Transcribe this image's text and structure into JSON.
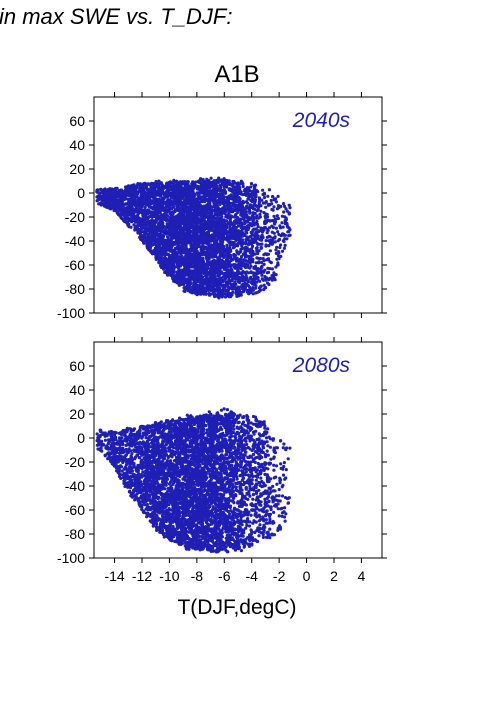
{
  "header": {
    "text": "in max SWE vs. T_DJF:"
  },
  "figure": {
    "title": "A1B",
    "xlabel": "T(DJF,degC)"
  },
  "chart_data": [
    {
      "type": "scatter",
      "panel_label": "2040s",
      "xlim": [
        -15.5,
        5.5
      ],
      "ylim": [
        -100,
        80
      ],
      "xticks": [
        -14,
        -12,
        -10,
        -8,
        -6,
        -4,
        -2,
        0,
        2,
        4
      ],
      "yticks": [
        60,
        40,
        20,
        0,
        -20,
        -40,
        -60,
        -80,
        -100
      ],
      "show_x_tick_labels": false,
      "marker_color": "#1f1fb5",
      "cloud": {
        "x_range": [
          -15,
          -1.5
        ],
        "y_top": [
          [
            -15,
            3
          ],
          [
            -14,
            5
          ],
          [
            -12,
            8
          ],
          [
            -10,
            9
          ],
          [
            -8,
            10
          ],
          [
            -6,
            11
          ],
          [
            -4,
            8
          ],
          [
            -2.5,
            3
          ],
          [
            -1.5,
            -10
          ]
        ],
        "y_bottom": [
          [
            -15,
            -10
          ],
          [
            -14,
            -15
          ],
          [
            -12,
            -40
          ],
          [
            -11,
            -55
          ],
          [
            -10,
            -70
          ],
          [
            -9,
            -80
          ],
          [
            -8,
            -85
          ],
          [
            -6,
            -87
          ],
          [
            -4,
            -85
          ],
          [
            -3,
            -80
          ],
          [
            -2,
            -70
          ],
          [
            -1.5,
            -40
          ]
        ]
      }
    },
    {
      "type": "scatter",
      "panel_label": "2080s",
      "xlim": [
        -15.5,
        5.5
      ],
      "ylim": [
        -100,
        80
      ],
      "xticks": [
        -14,
        -12,
        -10,
        -8,
        -6,
        -4,
        -2,
        0,
        2,
        4
      ],
      "yticks": [
        60,
        40,
        20,
        0,
        -20,
        -40,
        -60,
        -80,
        -100
      ],
      "show_x_tick_labels": true,
      "marker_color": "#1f1fb5",
      "cloud": {
        "x_range": [
          -15,
          -1.5
        ],
        "y_top": [
          [
            -15,
            8
          ],
          [
            -14,
            5
          ],
          [
            -12,
            10
          ],
          [
            -10,
            15
          ],
          [
            -8,
            18
          ],
          [
            -6,
            22
          ],
          [
            -4,
            18
          ],
          [
            -2.5,
            8
          ],
          [
            -1.5,
            -5
          ]
        ],
        "y_bottom": [
          [
            -15,
            -10
          ],
          [
            -14,
            -25
          ],
          [
            -13,
            -45
          ],
          [
            -12,
            -60
          ],
          [
            -11,
            -75
          ],
          [
            -10,
            -85
          ],
          [
            -9,
            -90
          ],
          [
            -8,
            -93
          ],
          [
            -6,
            -96
          ],
          [
            -4,
            -90
          ],
          [
            -3,
            -85
          ],
          [
            -2,
            -80
          ],
          [
            -1.5,
            -70
          ]
        ]
      }
    }
  ]
}
